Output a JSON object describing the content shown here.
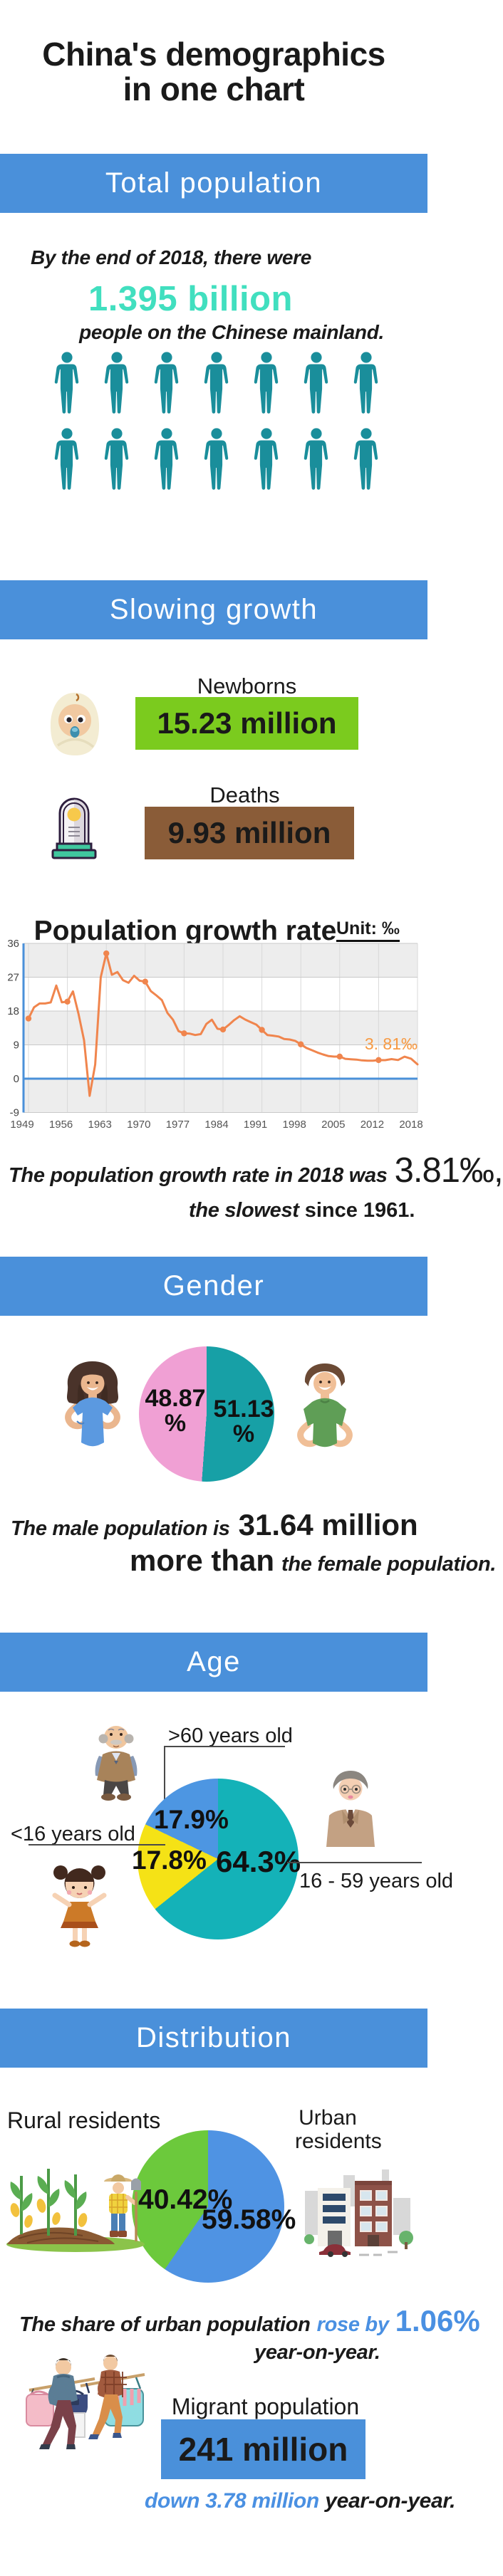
{
  "title": {
    "line1": "China's demographics",
    "line2": "in one chart"
  },
  "total": {
    "banner": "Total population",
    "intro": "By the end of 2018, there were",
    "number": "1.395 billion",
    "caption": "people on the Chinese mainland.",
    "icon_rows": 2,
    "icons_per_row": 7
  },
  "growth": {
    "banner": "Slowing growth",
    "newborns_label": "Newborns",
    "newborns_value": "15.23 million",
    "newborns_color": "#7bcb1e",
    "deaths_label": "Deaths",
    "deaths_value": "9.93 million",
    "deaths_color": "#8a5c38",
    "note_prefix": "The population growth rate in 2018 was",
    "note_big": "3.81‰,",
    "note_line2_em": "the slowest",
    "note_line2_rest": "since 1961."
  },
  "gender": {
    "banner": "Gender",
    "note_italic1": "The male population is",
    "note_big1": "31.64 million",
    "note_big2": "more than",
    "note_italic2": "the female population."
  },
  "age": {
    "banner": "Age"
  },
  "distribution": {
    "banner": "Distribution",
    "rural_label": "Rural residents",
    "urban_label_line1": "Urban",
    "urban_label_line2": "residents",
    "note_italic_black": "The share of urban population",
    "note_italic_blue": "rose by",
    "note_big_blue": "1.06%",
    "note_line2": "year-on-year.",
    "migrant_label": "Migrant population",
    "migrant_value": "241 million",
    "migrant_box_color": "#4a90da",
    "migrant_note_blue": "down 3.78 million",
    "migrant_note_black": "year-on-year."
  },
  "colors": {
    "banner_blue": "#4a90da",
    "mint": "#41dfbf",
    "accent_blue": "#4a90e2",
    "person_teal": "#1a8e9b"
  },
  "chart_data": [
    {
      "id": "growth-rate",
      "type": "line",
      "title": "Population growth rate",
      "unit_label": "Unit: ‰",
      "x_ticks": [
        1949,
        1956,
        1963,
        1970,
        1977,
        1984,
        1991,
        1998,
        2005,
        2012,
        2018
      ],
      "y_ticks": [
        36,
        27,
        18,
        9,
        0,
        -9
      ],
      "ylim": [
        -9,
        36
      ],
      "grid": true,
      "line_color": "#f0854d",
      "annotation": "3. 81‰",
      "annotation_color": "#f79a43",
      "marker_years": [
        1949,
        1956,
        1963,
        1970,
        1977,
        1984,
        1991,
        1998,
        2005,
        2012
      ],
      "years": [
        1949,
        1950,
        1951,
        1952,
        1953,
        1954,
        1955,
        1956,
        1957,
        1958,
        1959,
        1960,
        1961,
        1962,
        1963,
        1964,
        1965,
        1966,
        1967,
        1968,
        1969,
        1970,
        1971,
        1972,
        1973,
        1974,
        1975,
        1976,
        1977,
        1978,
        1979,
        1980,
        1981,
        1982,
        1983,
        1984,
        1985,
        1986,
        1987,
        1988,
        1989,
        1990,
        1991,
        1992,
        1993,
        1994,
        1995,
        1996,
        1997,
        1998,
        1999,
        2000,
        2001,
        2002,
        2003,
        2004,
        2005,
        2006,
        2007,
        2008,
        2009,
        2010,
        2011,
        2012,
        2013,
        2014,
        2015,
        2016,
        2017,
        2018
      ],
      "values": [
        16.0,
        19.0,
        20.0,
        20.0,
        20.3,
        24.79,
        20.32,
        20.5,
        23.23,
        17.24,
        10.19,
        -4.57,
        3.78,
        26.99,
        33.33,
        27.64,
        28.38,
        26.22,
        25.53,
        27.38,
        26.08,
        25.83,
        23.33,
        22.16,
        20.89,
        17.48,
        15.69,
        12.66,
        12.06,
        12.0,
        11.61,
        11.87,
        14.55,
        15.68,
        13.29,
        13.08,
        14.26,
        15.57,
        16.61,
        15.73,
        15.04,
        14.39,
        12.98,
        11.6,
        11.45,
        11.21,
        10.55,
        10.42,
        10.06,
        9.14,
        8.18,
        7.58,
        6.95,
        6.45,
        6.01,
        5.87,
        5.89,
        5.28,
        5.17,
        5.08,
        4.87,
        4.79,
        4.79,
        4.95,
        4.92,
        5.21,
        4.96,
        5.86,
        5.32,
        3.81
      ]
    },
    {
      "id": "gender-pie",
      "type": "pie",
      "slices": [
        {
          "name": "Male",
          "value": 51.13,
          "label": "51.13%",
          "label_lines": [
            "51.13",
            "%"
          ],
          "color": "#17a0a6"
        },
        {
          "name": "Female",
          "value": 48.87,
          "label": "48.87%",
          "label_lines": [
            "48.87",
            "%"
          ],
          "color": "#f0a0d4"
        }
      ]
    },
    {
      "id": "age-pie",
      "type": "pie",
      "slices": [
        {
          "name": "16 - 59 years old",
          "value": 64.3,
          "label": "64.3%",
          "color": "#14b2b8"
        },
        {
          "name": "<16 years old",
          "value": 17.8,
          "label": "17.8%",
          "color": "#f5e216"
        },
        {
          "name": ">60 years old",
          "value": 17.9,
          "label": "17.9%",
          "color": "#4d96e2"
        }
      ]
    },
    {
      "id": "residence-pie",
      "type": "pie",
      "slices": [
        {
          "name": "Urban residents",
          "value": 59.58,
          "label": "59.58%",
          "color": "#4f93e3"
        },
        {
          "name": "Rural residents",
          "value": 40.42,
          "label": "40.42%",
          "color": "#6cc93c"
        }
      ]
    }
  ]
}
